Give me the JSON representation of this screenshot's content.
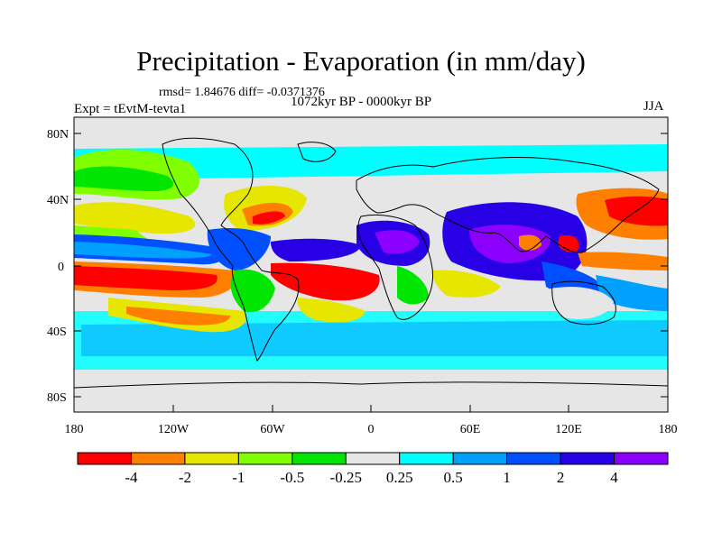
{
  "title": "Precipitation - Evaporation (in mm/day)",
  "stats": "rmsd= 1.84676 diff= -0.0371376",
  "experiment": "Expt = tEvtM-tevta1",
  "period": "1072kyr BP - 0000kyr BP",
  "season": "JJA",
  "lat_labels": [
    "80N",
    "40N",
    "0",
    "40S",
    "80S"
  ],
  "lon_labels": [
    "180",
    "120W",
    "60W",
    "0",
    "60E",
    "120E",
    "180"
  ],
  "colorbar": {
    "colors": [
      "#ff0000",
      "#ff8000",
      "#e6e600",
      "#80ff00",
      "#00e600",
      "#e6e6e6",
      "#00ffff",
      "#00a0ff",
      "#0050ff",
      "#2800e6",
      "#8c00ff"
    ],
    "labels": [
      "-4",
      "-2",
      "-1",
      "-0.5",
      "-0.25",
      "0.25",
      "0.5",
      "1",
      "2",
      "4"
    ]
  }
}
